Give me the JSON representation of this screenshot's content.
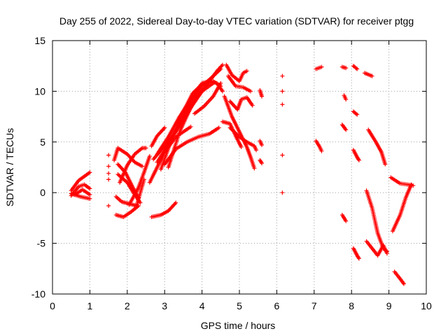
{
  "chart_data": {
    "type": "scatter",
    "title": "Day 255 of 2022, Sidereal Day-to-day VTEC variation (SDTVAR) for receiver ptgg",
    "xlabel": "GPS time / hours",
    "ylabel": "SDTVAR / TECUs",
    "xlim": [
      0,
      10
    ],
    "ylim": [
      -10,
      15
    ],
    "xticks": [
      0,
      1,
      2,
      3,
      4,
      5,
      6,
      7,
      8,
      9,
      10
    ],
    "yticks": [
      -10,
      -5,
      0,
      5,
      10,
      15
    ],
    "grid": true,
    "marker": "plus",
    "marker_color": "#ff0000",
    "series_segments": [
      [
        [
          0.5,
          0.2
        ],
        [
          0.7,
          1.2
        ],
        [
          0.85,
          1.6
        ],
        [
          1.0,
          2.0
        ]
      ],
      [
        [
          0.5,
          -0.3
        ],
        [
          0.7,
          0.6
        ],
        [
          0.85,
          0.8
        ],
        [
          1.0,
          0.4
        ]
      ],
      [
        [
          0.5,
          -0.1
        ],
        [
          0.75,
          -0.4
        ],
        [
          1.0,
          -0.6
        ]
      ],
      [
        [
          0.6,
          -0.2
        ],
        [
          0.8,
          0.3
        ],
        [
          1.0,
          -0.2
        ]
      ],
      [
        [
          1.5,
          3.7
        ]
      ],
      [
        [
          1.5,
          2.6
        ]
      ],
      [
        [
          1.5,
          1.9
        ]
      ],
      [
        [
          1.5,
          1.3
        ]
      ],
      [
        [
          1.5,
          -1.3
        ]
      ],
      [
        [
          1.65,
          3.2
        ],
        [
          1.75,
          4.4
        ],
        [
          2.0,
          3.8
        ],
        [
          2.2,
          3.0
        ],
        [
          2.4,
          2.6
        ]
      ],
      [
        [
          1.7,
          -2.2
        ],
        [
          1.9,
          -2.4
        ],
        [
          2.1,
          -1.9
        ],
        [
          2.3,
          -1.3
        ]
      ],
      [
        [
          1.7,
          -0.4
        ],
        [
          1.85,
          -0.9
        ],
        [
          2.05,
          -1.1
        ],
        [
          2.25,
          -1.3
        ]
      ],
      [
        [
          1.75,
          1.8
        ],
        [
          2.0,
          1.0
        ],
        [
          2.2,
          -0.2
        ],
        [
          2.35,
          -1.0
        ]
      ],
      [
        [
          1.75,
          2.8
        ],
        [
          1.95,
          2.0
        ],
        [
          2.15,
          0.5
        ],
        [
          2.3,
          -0.5
        ]
      ],
      [
        [
          1.8,
          1.0
        ],
        [
          2.0,
          2.7
        ],
        [
          2.2,
          3.8
        ],
        [
          2.4,
          4.4
        ],
        [
          2.5,
          4.4
        ]
      ],
      [
        [
          2.05,
          -1.2
        ],
        [
          2.3,
          0.5
        ],
        [
          2.45,
          2.0
        ],
        [
          2.6,
          3.6
        ]
      ],
      [
        [
          2.25,
          -1.3
        ],
        [
          2.45,
          1.3
        ]
      ],
      [
        [
          2.65,
          -2.4
        ],
        [
          2.9,
          -2.2
        ],
        [
          3.1,
          -1.8
        ],
        [
          3.3,
          -1.0
        ]
      ],
      [
        [
          2.65,
          4.6
        ],
        [
          2.8,
          5.6
        ],
        [
          3.0,
          6.4
        ]
      ],
      [
        [
          2.6,
          1.0
        ],
        [
          3.0,
          4.0
        ],
        [
          3.3,
          5.5
        ],
        [
          3.5,
          6.0
        ],
        [
          3.7,
          6.5
        ]
      ],
      [
        [
          2.7,
          3.3
        ],
        [
          3.0,
          4.6
        ],
        [
          3.3,
          6.0
        ],
        [
          3.6,
          7.8
        ],
        [
          3.9,
          9.5
        ],
        [
          4.2,
          11.0
        ],
        [
          4.4,
          12.0
        ],
        [
          4.55,
          12.6
        ]
      ],
      [
        [
          2.8,
          3.0
        ],
        [
          3.1,
          4.8
        ],
        [
          3.4,
          6.8
        ],
        [
          3.7,
          8.8
        ],
        [
          4.0,
          10.5
        ],
        [
          4.3,
          11.5
        ],
        [
          4.5,
          12.2
        ]
      ],
      [
        [
          2.8,
          3.8
        ],
        [
          3.1,
          5.5
        ],
        [
          3.4,
          7.5
        ],
        [
          3.7,
          9.2
        ],
        [
          4.0,
          10.8
        ],
        [
          4.2,
          11.0
        ],
        [
          4.4,
          10.8
        ],
        [
          4.55,
          10.0
        ]
      ],
      [
        [
          2.9,
          2.3
        ],
        [
          3.2,
          5.4
        ],
        [
          3.5,
          8.0
        ],
        [
          3.75,
          9.8
        ],
        [
          4.0,
          10.7
        ],
        [
          4.3,
          11.0
        ],
        [
          4.5,
          10.5
        ]
      ],
      [
        [
          3.0,
          2.8
        ],
        [
          3.3,
          4.3
        ],
        [
          3.6,
          5.0
        ],
        [
          3.9,
          5.5
        ],
        [
          4.2,
          5.8
        ],
        [
          4.45,
          6.4
        ]
      ],
      [
        [
          3.1,
          2.5
        ],
        [
          3.4,
          6.0
        ],
        [
          3.7,
          8.4
        ],
        [
          4.0,
          10.0
        ],
        [
          4.3,
          10.8
        ]
      ],
      [
        [
          3.8,
          7.8
        ],
        [
          4.05,
          8.5
        ],
        [
          4.3,
          9.5
        ],
        [
          4.5,
          10.8
        ]
      ],
      [
        [
          4.65,
          12.6
        ],
        [
          4.8,
          11.6
        ],
        [
          5.0,
          11.0
        ],
        [
          5.1,
          11.8
        ],
        [
          5.2,
          12.0
        ]
      ],
      [
        [
          4.7,
          11.5
        ],
        [
          4.9,
          10.5
        ],
        [
          5.1,
          10.4
        ],
        [
          5.3,
          10.0
        ]
      ],
      [
        [
          4.75,
          9.0
        ],
        [
          4.95,
          8.2
        ],
        [
          5.05,
          9.2
        ],
        [
          5.2,
          9.4
        ],
        [
          5.35,
          8.6
        ]
      ],
      [
        [
          4.6,
          9.5
        ],
        [
          4.8,
          7.5
        ],
        [
          5.0,
          6.0
        ],
        [
          5.2,
          4.5
        ],
        [
          5.3,
          3.5
        ],
        [
          5.4,
          2.4
        ]
      ],
      [
        [
          4.75,
          6.4
        ],
        [
          5.0,
          5.5
        ],
        [
          5.2,
          5.0
        ],
        [
          5.4,
          4.6
        ],
        [
          5.45,
          4.2
        ]
      ],
      [
        [
          4.55,
          7.0
        ],
        [
          4.75,
          6.8
        ],
        [
          4.9,
          5.6
        ],
        [
          5.05,
          4.5
        ]
      ],
      [
        [
          5.55,
          10.1
        ],
        [
          5.6,
          9.5
        ]
      ],
      [
        [
          5.55,
          5.1
        ],
        [
          5.6,
          4.7
        ]
      ],
      [
        [
          5.55,
          3.2
        ],
        [
          5.6,
          2.9
        ]
      ],
      [
        [
          6.15,
          11.5
        ]
      ],
      [
        [
          6.15,
          10.0
        ]
      ],
      [
        [
          6.15,
          8.7
        ]
      ],
      [
        [
          6.15,
          3.7
        ]
      ],
      [
        [
          6.15,
          0.0
        ]
      ],
      [
        [
          7.05,
          12.2
        ],
        [
          7.2,
          12.4
        ]
      ],
      [
        [
          7.05,
          5.1
        ],
        [
          7.15,
          4.5
        ],
        [
          7.2,
          4.1
        ]
      ],
      [
        [
          7.75,
          12.4
        ],
        [
          7.85,
          12.3
        ]
      ],
      [
        [
          7.8,
          9.6
        ],
        [
          7.85,
          9.2
        ]
      ],
      [
        [
          7.75,
          6.7
        ],
        [
          7.85,
          6.2
        ]
      ],
      [
        [
          7.75,
          -2.2
        ],
        [
          7.85,
          -2.8
        ]
      ],
      [
        [
          8.05,
          12.5
        ],
        [
          8.15,
          12.2
        ]
      ],
      [
        [
          8.05,
          8.0
        ],
        [
          8.15,
          7.7
        ]
      ],
      [
        [
          8.05,
          4.2
        ],
        [
          8.15,
          3.5
        ],
        [
          8.2,
          3.2
        ]
      ],
      [
        [
          8.05,
          -5.5
        ],
        [
          8.15,
          -6.2
        ],
        [
          8.2,
          -6.5
        ]
      ],
      [
        [
          8.35,
          11.8
        ],
        [
          8.55,
          11.5
        ]
      ],
      [
        [
          8.45,
          6.2
        ],
        [
          8.65,
          5.0
        ],
        [
          8.8,
          4.0
        ],
        [
          8.9,
          2.8
        ]
      ],
      [
        [
          8.4,
          0.2
        ],
        [
          8.55,
          -1.5
        ],
        [
          8.7,
          -4.0
        ],
        [
          8.85,
          -5.5
        ],
        [
          8.95,
          -5.8
        ]
      ],
      [
        [
          8.4,
          -4.8
        ],
        [
          8.55,
          -5.5
        ],
        [
          8.7,
          -6.2
        ],
        [
          8.85,
          -5.2
        ],
        [
          8.95,
          -6.0
        ]
      ],
      [
        [
          9.05,
          1.5
        ],
        [
          9.3,
          0.9
        ],
        [
          9.5,
          0.8
        ],
        [
          9.65,
          0.7
        ]
      ],
      [
        [
          9.1,
          -3.8
        ],
        [
          9.3,
          -2.2
        ],
        [
          9.45,
          -0.5
        ],
        [
          9.6,
          0.8
        ]
      ],
      [
        [
          9.15,
          -7.8
        ],
        [
          9.3,
          -8.5
        ],
        [
          9.4,
          -9.0
        ]
      ]
    ]
  }
}
